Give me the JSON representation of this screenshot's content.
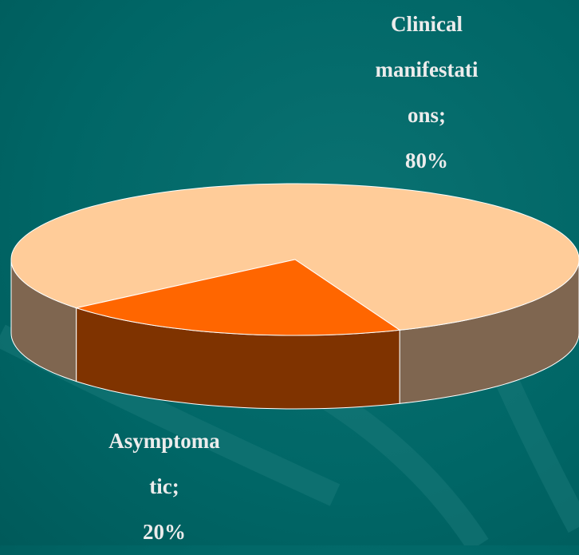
{
  "chart_data": {
    "type": "pie3d",
    "categories": [
      "Clinical manifestations;",
      "Asymptomatic;"
    ],
    "values": [
      80,
      20
    ],
    "value_labels": [
      "80%",
      "20%"
    ],
    "colors": [
      "#ffcc99",
      "#ff6600"
    ],
    "side_colors": [
      "#7f6650",
      "#7f3300"
    ]
  }
}
